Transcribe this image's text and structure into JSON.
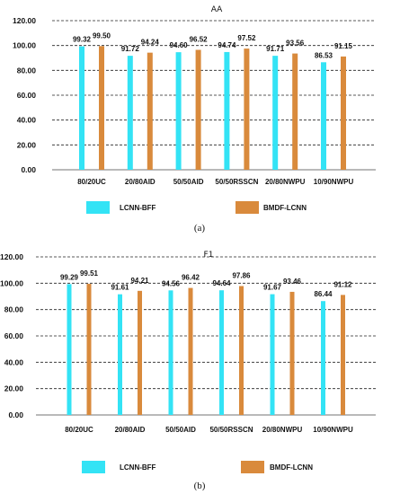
{
  "colors": {
    "lcnn": "#33e3f5",
    "bmdf": "#d98a3c",
    "grid": "#222222"
  },
  "chart_data": [
    {
      "type": "bar",
      "title": "AA",
      "caption": "(a)",
      "categories": [
        "80/20UC",
        "20/80AID",
        "50/50AID",
        "50/50RSSCN",
        "20/80NWPU",
        "10/90NWPU"
      ],
      "ylim": [
        0,
        120
      ],
      "yticks": [
        "0.00",
        "20.00",
        "40.00",
        "60.00",
        "80.00",
        "100.00",
        "120.00"
      ],
      "grid": "horizontal dashed",
      "legend_position": "bottom",
      "series": [
        {
          "name": "LCNN-BFF",
          "values": [
            99.32,
            91.72,
            94.6,
            94.74,
            91.71,
            86.53
          ],
          "labels": [
            "99.32",
            "91.72",
            "94.60",
            "94.74",
            "91.71",
            "86.53"
          ]
        },
        {
          "name": "BMDF-LCNN",
          "values": [
            99.5,
            94.24,
            96.52,
            97.52,
            93.56,
            91.15
          ],
          "labels": [
            "99.50",
            "94.24",
            "96.52",
            "97.52",
            "93.56",
            "91.15"
          ]
        }
      ]
    },
    {
      "type": "bar",
      "title": "F1",
      "caption": "(b)",
      "categories": [
        "80/20UC",
        "20/80AID",
        "50/50AID",
        "50/50RSSCN",
        "20/80NWPU",
        "10/90NWPU"
      ],
      "ylim": [
        0,
        120
      ],
      "yticks": [
        "0.00",
        "20.00",
        "40.00",
        "60.00",
        "80.00",
        "100.00",
        "120.00"
      ],
      "grid": "horizontal dashed",
      "legend_position": "bottom",
      "series": [
        {
          "name": "LCNN-BFF",
          "values": [
            99.29,
            91.61,
            94.56,
            94.64,
            91.67,
            86.44
          ],
          "labels": [
            "99.29",
            "91.61",
            "94.56",
            "94.64",
            "91.67",
            "86.44"
          ]
        },
        {
          "name": "BMDF-LCNN",
          "values": [
            99.51,
            94.21,
            96.42,
            97.86,
            93.46,
            91.12
          ],
          "labels": [
            "99.51",
            "94.21",
            "96.42",
            "97.86",
            "93.46",
            "91.12"
          ]
        }
      ]
    }
  ]
}
